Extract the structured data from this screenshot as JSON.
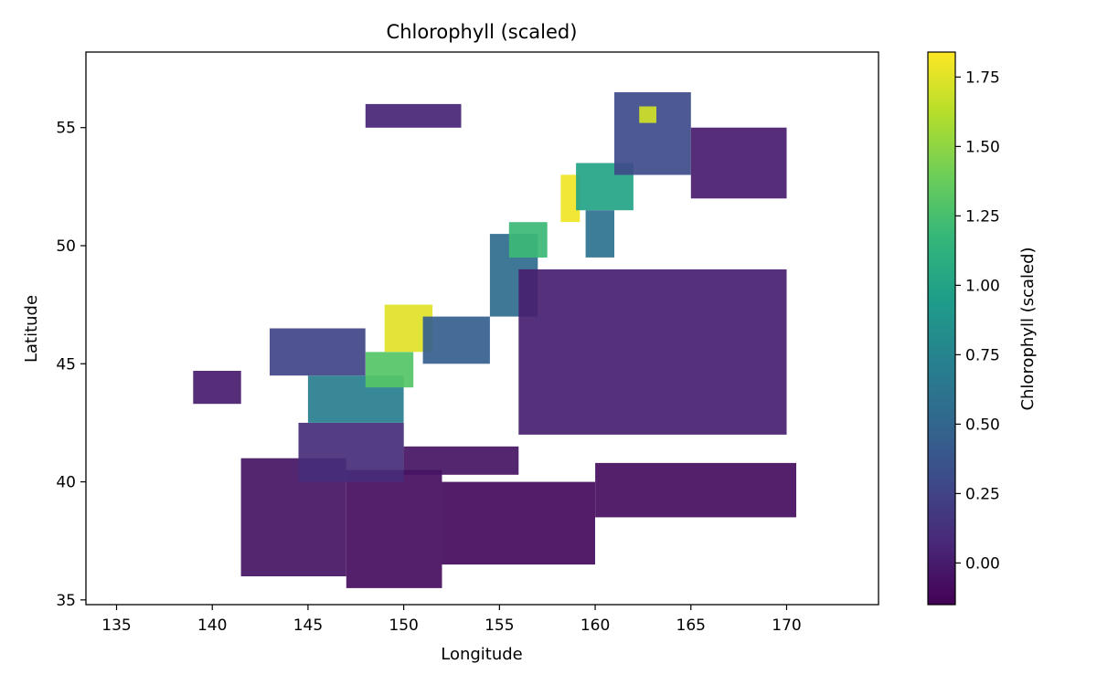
{
  "chart_data": {
    "type": "heatmap",
    "title": "Chlorophyll (scaled)",
    "xlabel": "Longitude",
    "ylabel": "Latitude",
    "xlim": [
      133.4,
      174.8
    ],
    "ylim": [
      34.8,
      58.2
    ],
    "x_ticks": [
      135,
      140,
      145,
      150,
      155,
      160,
      165,
      170
    ],
    "x_tick_labels": [
      "135",
      "140",
      "145",
      "150",
      "155",
      "160",
      "165",
      "170"
    ],
    "y_ticks": [
      35,
      40,
      45,
      50,
      55
    ],
    "y_tick_labels": [
      "35",
      "40",
      "45",
      "50",
      "55"
    ],
    "colorbar": {
      "label": "Chlorophyll (scaled)",
      "colormap": "viridis",
      "range": [
        -0.15,
        1.84
      ],
      "ticks": [
        0.0,
        0.25,
        0.5,
        0.75,
        1.0,
        1.25,
        1.5,
        1.75
      ],
      "tick_labels": [
        "0.00",
        "0.25",
        "0.50",
        "0.75",
        "1.00",
        "1.25",
        "1.50",
        "1.75"
      ],
      "colors": [
        "#440154",
        "#482878",
        "#3e4a89",
        "#31688e",
        "#26828e",
        "#1f9e89",
        "#35b779",
        "#6ece58",
        "#b5de2b",
        "#fde725"
      ]
    },
    "regions": [
      {
        "lon": [
          141.5,
          147
        ],
        "lat": [
          36,
          41
        ],
        "value": -0.05
      },
      {
        "lon": [
          147,
          152
        ],
        "lat": [
          35.5,
          40.5
        ],
        "value": -0.08
      },
      {
        "lon": [
          152,
          160
        ],
        "lat": [
          36.5,
          40
        ],
        "value": -0.1
      },
      {
        "lon": [
          160,
          170.5
        ],
        "lat": [
          38.5,
          40.8
        ],
        "value": -0.08
      },
      {
        "lon": [
          139,
          141.5
        ],
        "lat": [
          43.3,
          44.7
        ],
        "value": 0.0
      },
      {
        "lon": [
          144.5,
          150
        ],
        "lat": [
          40,
          42.5
        ],
        "value": 0.1
      },
      {
        "lon": [
          150,
          156
        ],
        "lat": [
          40.3,
          41.5
        ],
        "value": -0.05
      },
      {
        "lon": [
          145,
          150
        ],
        "lat": [
          42.5,
          44.5
        ],
        "value": 0.7
      },
      {
        "lon": [
          148,
          150.5
        ],
        "lat": [
          44,
          45.5
        ],
        "value": 1.3
      },
      {
        "lon": [
          143,
          148
        ],
        "lat": [
          44.5,
          46.5
        ],
        "value": 0.25
      },
      {
        "lon": [
          149,
          151.5
        ],
        "lat": [
          45.5,
          47.5
        ],
        "value": 1.75
      },
      {
        "lon": [
          151,
          154.5
        ],
        "lat": [
          45,
          47
        ],
        "value": 0.45
      },
      {
        "lon": [
          154.5,
          157
        ],
        "lat": [
          47,
          50.5
        ],
        "value": 0.55
      },
      {
        "lon": [
          155.5,
          157.5
        ],
        "lat": [
          49.5,
          51
        ],
        "value": 1.2
      },
      {
        "lon": [
          158.2,
          159.2
        ],
        "lat": [
          51,
          53
        ],
        "value": 1.8
      },
      {
        "lon": [
          159,
          162
        ],
        "lat": [
          51.5,
          53.5
        ],
        "value": 1.0
      },
      {
        "lon": [
          159.5,
          161
        ],
        "lat": [
          49.5,
          51.5
        ],
        "value": 0.6
      },
      {
        "lon": [
          161,
          165
        ],
        "lat": [
          53,
          56.5
        ],
        "value": 0.3
      },
      {
        "lon": [
          162.3,
          163.2
        ],
        "lat": [
          55.2,
          55.9
        ],
        "value": 1.7
      },
      {
        "lon": [
          148,
          153
        ],
        "lat": [
          55,
          56
        ],
        "value": 0.05
      },
      {
        "lon": [
          156,
          170
        ],
        "lat": [
          42,
          49
        ],
        "value": 0.02
      },
      {
        "lon": [
          165,
          170
        ],
        "lat": [
          52,
          55
        ],
        "value": 0.0
      }
    ]
  }
}
